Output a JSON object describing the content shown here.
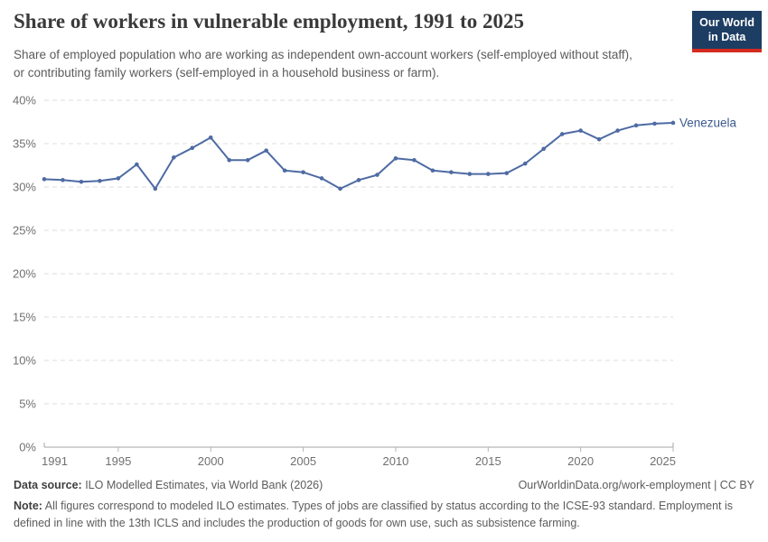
{
  "header": {
    "title": "Share of workers in vulnerable employment, 1991 to 2025",
    "subtitle": "Share of employed population who are working as independent own-account workers (self-employed without staff), or contributing family workers (self-employed in a household business or farm)."
  },
  "logo": {
    "line1": "Our World",
    "line2": "in Data",
    "bg_color": "#1d3d63",
    "accent_color": "#d42b21"
  },
  "chart_data": {
    "type": "line",
    "title": "Share of workers in vulnerable employment, 1991 to 2025",
    "x": [
      1991,
      1992,
      1993,
      1994,
      1995,
      1996,
      1997,
      1998,
      1999,
      2000,
      2001,
      2002,
      2003,
      2004,
      2005,
      2006,
      2007,
      2008,
      2009,
      2010,
      2011,
      2012,
      2013,
      2014,
      2015,
      2016,
      2017,
      2018,
      2019,
      2020,
      2021,
      2022,
      2023,
      2024,
      2025
    ],
    "series": [
      {
        "name": "Venezuela",
        "color": "#4e6ba3",
        "label_color": "#3d5a8f",
        "values": [
          30.9,
          30.8,
          30.6,
          30.7,
          31.0,
          32.6,
          29.8,
          33.4,
          34.5,
          35.7,
          33.1,
          33.1,
          34.2,
          31.9,
          31.7,
          31.0,
          29.8,
          30.8,
          31.4,
          33.3,
          33.1,
          31.9,
          31.7,
          31.5,
          31.5,
          31.6,
          32.7,
          34.4,
          36.1,
          36.5,
          35.5,
          36.5,
          37.1,
          37.3,
          37.4
        ]
      }
    ],
    "xlabel": "",
    "ylabel": "",
    "ylim": [
      0,
      40
    ],
    "yticks": [
      0,
      5,
      10,
      15,
      20,
      25,
      30,
      35,
      40
    ],
    "ytick_suffix": "%",
    "xticks": [
      1991,
      1995,
      2000,
      2005,
      2010,
      2015,
      2020,
      2025
    ],
    "grid": "horizontal-dashed",
    "legend_position": "line-end-label",
    "colors": {
      "gridline": "#dcdcdc",
      "axis_line": "#a5a5a5",
      "tick_mark": "#b5b5b5",
      "tick_label": "#707070"
    }
  },
  "footer": {
    "datasource_label": "Data source:",
    "datasource_text": " ILO Modelled Estimates, via World Bank (2026)",
    "link_text": "OurWorldinData.org/work-employment | CC BY",
    "note_label": "Note:",
    "note_text": " All figures correspond to modeled ILO estimates. Types of jobs are classified by status according to the ICSE-93 standard. Employment is defined in line with the 13th ICLS and includes the production of goods for own use, such as subsistence farming."
  }
}
